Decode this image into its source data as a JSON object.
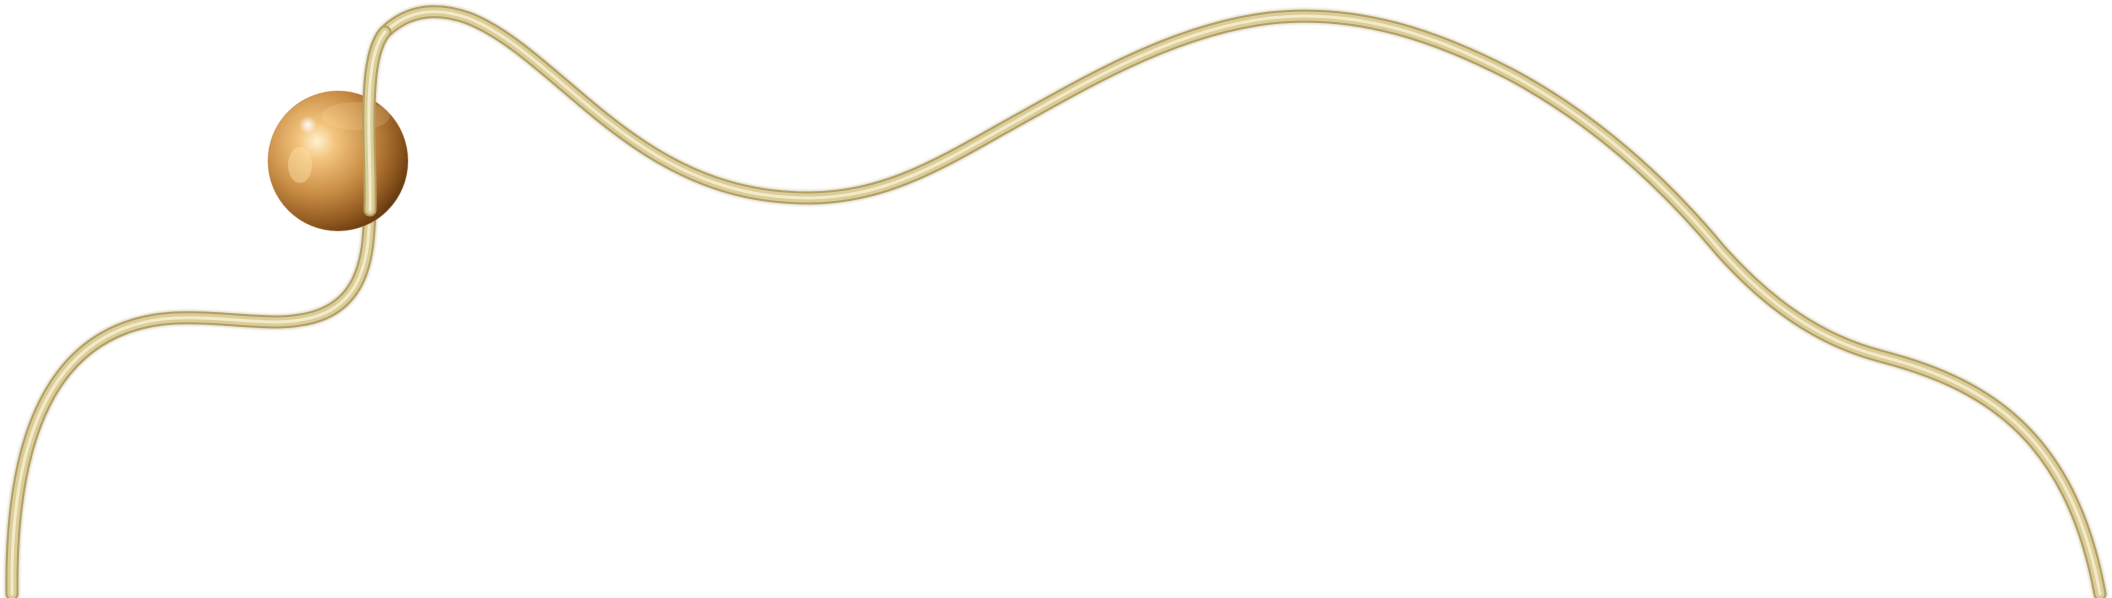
{
  "artwork": {
    "elements": [
      "golden-wire-curve",
      "bronze-sphere-ornament"
    ],
    "colors": {
      "background": "#ffffff",
      "wire_light": "#f1e8c4",
      "wire_mid": "#dbcd98",
      "wire_dark": "#a8965a",
      "sphere_highlight": "#ffe7b3",
      "sphere_mid": "#d49a55",
      "sphere_dark": "#6b3d12"
    }
  }
}
